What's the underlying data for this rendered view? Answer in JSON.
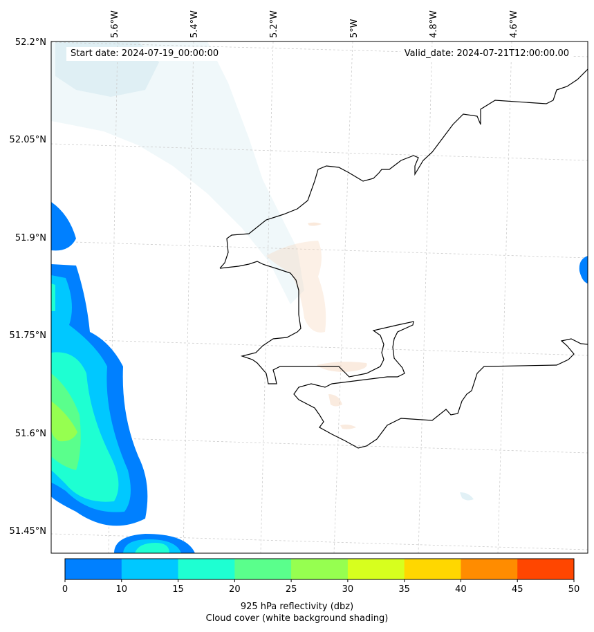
{
  "header": {
    "start_date": "Start date: 2024-07-19_00:00:00",
    "valid_date": "Valid_date: 2024-07-21T12:00:00.00"
  },
  "longitude_labels": [
    "5.6°W",
    "5.4°W",
    "5.2°W",
    "5°W",
    "4.8°W",
    "4.6°W"
  ],
  "latitude_labels": [
    "52.2°N",
    "52.05°N",
    "51.9°N",
    "51.75°N",
    "51.6°N",
    "51.45°N"
  ],
  "colorbar": {
    "ticks": [
      "0",
      "10",
      "15",
      "20",
      "25",
      "30",
      "35",
      "40",
      "45",
      "50"
    ],
    "colors": [
      "#0080ff",
      "#00c8ff",
      "#1effd2",
      "#5aff8c",
      "#96ff50",
      "#d7ff1e",
      "#ffd700",
      "#ff8c00",
      "#ff4600"
    ],
    "label_line1": "925 hPa reflectivity (dbz)",
    "label_line2": "Cloud cover (white background shading)"
  }
}
